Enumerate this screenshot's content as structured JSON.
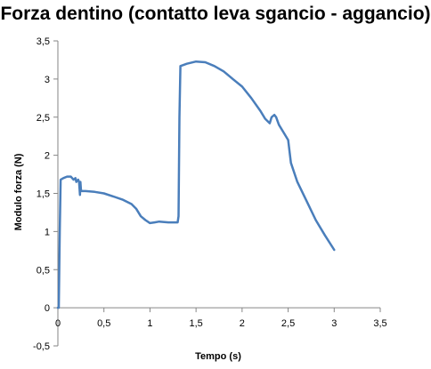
{
  "chart_data": {
    "type": "line",
    "title": "Forza dentino (contatto leva sgancio - aggancio)",
    "xlabel": "Tempo (s)",
    "ylabel": "Modulo forza (N)",
    "xlim": [
      0,
      3.5
    ],
    "ylim": [
      -0.5,
      3.5
    ],
    "x_ticks": [
      "0",
      "0,5",
      "1",
      "1,5",
      "2",
      "2,5",
      "3",
      "3,5"
    ],
    "y_ticks": [
      "-0,5",
      "0",
      "0,5",
      "1",
      "1,5",
      "2",
      "2,5",
      "3",
      "3,5"
    ],
    "grid": false,
    "legend": false,
    "series": [
      {
        "color": "#4a7ebb",
        "x": [
          0.0,
          0.01,
          0.02,
          0.03,
          0.06,
          0.1,
          0.14,
          0.17,
          0.19,
          0.2,
          0.22,
          0.23,
          0.24,
          0.245,
          0.25,
          0.255,
          0.3,
          0.4,
          0.5,
          0.6,
          0.7,
          0.8,
          0.85,
          0.9,
          0.95,
          1.0,
          1.05,
          1.1,
          1.2,
          1.3,
          1.31,
          1.32,
          1.33,
          1.4,
          1.5,
          1.6,
          1.7,
          1.8,
          1.9,
          2.0,
          2.1,
          2.2,
          2.25,
          2.3,
          2.32,
          2.35,
          2.37,
          2.4,
          2.45,
          2.5,
          2.53,
          2.6,
          2.7,
          2.8,
          2.9,
          3.0
        ],
        "y": [
          0.0,
          0.0,
          1.0,
          1.68,
          1.7,
          1.72,
          1.72,
          1.68,
          1.7,
          1.65,
          1.68,
          1.65,
          1.48,
          1.65,
          1.55,
          1.53,
          1.53,
          1.52,
          1.5,
          1.46,
          1.42,
          1.36,
          1.3,
          1.2,
          1.15,
          1.11,
          1.12,
          1.13,
          1.12,
          1.12,
          1.2,
          2.5,
          3.17,
          3.2,
          3.23,
          3.22,
          3.17,
          3.1,
          3.0,
          2.9,
          2.75,
          2.58,
          2.48,
          2.42,
          2.5,
          2.53,
          2.5,
          2.4,
          2.3,
          2.2,
          1.9,
          1.65,
          1.4,
          1.15,
          0.95,
          0.76
        ]
      }
    ]
  }
}
